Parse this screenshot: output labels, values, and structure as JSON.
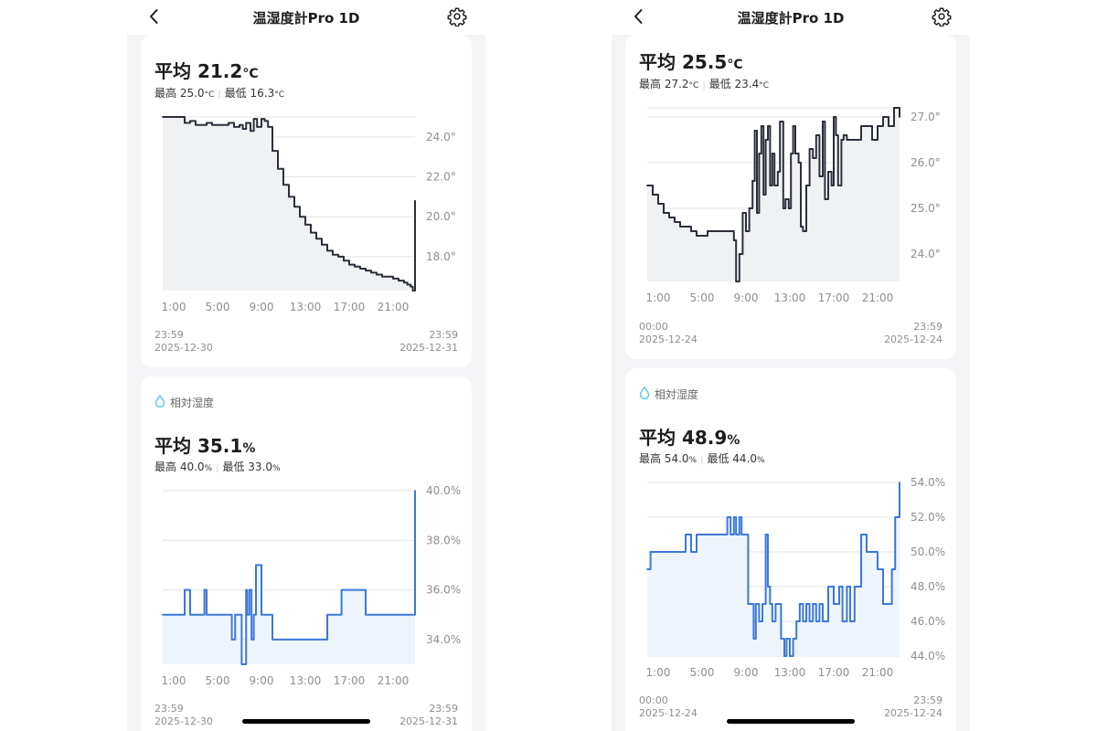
{
  "screens": [
    {
      "header": {
        "title": "温湿度計Pro 1D"
      },
      "temperature": {
        "avg_label": "平均 21.2",
        "avg_unit": "°C",
        "max_label": "最高 25.0",
        "max_unit": "°C",
        "min_label": "最低 16.3",
        "min_unit": "°C",
        "range_start_time": "23:59",
        "range_start_date": "2025-12-30",
        "range_end_time": "23:59",
        "range_end_date": "2025-12-31"
      },
      "humidity": {
        "label": "相対湿度",
        "avg_label": "平均 35.1",
        "avg_unit": "%",
        "max_label": "最高 40.0",
        "max_unit": "%",
        "min_label": "最低 33.0",
        "min_unit": "%",
        "range_start_time": "23:59",
        "range_start_date": "2025-12-30",
        "range_end_time": "23:59",
        "range_end_date": "2025-12-31"
      }
    },
    {
      "header": {
        "title": "温湿度計Pro 1D"
      },
      "temperature": {
        "avg_label": "平均 25.5",
        "avg_unit": "°C",
        "max_label": "最高 27.2",
        "max_unit": "°C",
        "min_label": "最低 23.4",
        "min_unit": "°C",
        "range_start_time": "00:00",
        "range_start_date": "2025-12-24",
        "range_end_time": "23:59",
        "range_end_date": "2025-12-24"
      },
      "humidity": {
        "label": "相対湿度",
        "avg_label": "平均 48.9",
        "avg_unit": "%",
        "max_label": "最高 54.0",
        "max_unit": "%",
        "min_label": "最低 44.0",
        "min_unit": "%",
        "range_start_time": "00:00",
        "range_start_date": "2025-12-24",
        "range_end_time": "23:59",
        "range_end_date": "2025-12-24"
      }
    }
  ],
  "colors": {
    "temperature_line": "#2b2f3a",
    "temperature_fill": "#eff1f2",
    "humidity_line": "#3b78d8",
    "humidity_fill": "#eef4fb",
    "gridline": "#e3e3e6",
    "tick_text": "#8e8e93",
    "drop_icon": "#5ac8fa"
  },
  "chart_data": [
    {
      "type": "line",
      "series": [
        {
          "x": [
            0,
            1,
            2,
            2.5,
            3,
            3.5,
            4,
            4.5,
            5,
            5.5,
            6,
            6.5,
            7,
            7.3,
            7.6,
            8,
            8.3,
            8.6,
            9,
            9.3,
            9.6,
            10,
            10.5,
            11,
            11.5,
            12,
            12.5,
            13,
            13.5,
            14,
            14.5,
            15,
            15.5,
            16,
            16.5,
            17,
            17.5,
            18,
            18.5,
            19,
            19.5,
            20,
            20.5,
            21,
            21.5,
            22,
            22.3,
            22.6,
            22.8,
            23
          ],
          "y": [
            25.0,
            25.0,
            24.7,
            24.8,
            24.6,
            24.6,
            24.7,
            24.6,
            24.6,
            24.6,
            24.7,
            24.5,
            24.6,
            24.4,
            24.7,
            24.3,
            24.9,
            24.5,
            24.9,
            24.8,
            24.5,
            23.3,
            22.4,
            21.6,
            21.0,
            20.5,
            20.0,
            19.6,
            19.2,
            18.9,
            18.6,
            18.3,
            18.1,
            18.0,
            17.8,
            17.6,
            17.5,
            17.4,
            17.3,
            17.2,
            17.1,
            17.0,
            17.0,
            16.9,
            16.8,
            16.7,
            16.6,
            16.5,
            16.3,
            20.8
          ]
        }
      ],
      "xticks": [
        "1:00",
        "5:00",
        "9:00",
        "13:00",
        "17:00",
        "21:00"
      ],
      "yticks": [
        "18.0°",
        "20.0°",
        "22.0°",
        "24.0°"
      ],
      "ylim": [
        16.3,
        25.0
      ]
    },
    {
      "type": "line",
      "series": [
        {
          "x": [
            0,
            0.5,
            1,
            1.5,
            2,
            2.5,
            3,
            3.5,
            3.8,
            4,
            4.5,
            5,
            5.5,
            6,
            6.3,
            6.6,
            7,
            7.2,
            7.6,
            7.7,
            7.9,
            8.1,
            8.3,
            8.5,
            9,
            9.5,
            10,
            10.5,
            11,
            11.5,
            12,
            12.5,
            13,
            13.5,
            14,
            15,
            16,
            16.3,
            16.5,
            17,
            17.5,
            18,
            18.5,
            19,
            19.5,
            20,
            20.5,
            21,
            21.5,
            22,
            22.5,
            23
          ],
          "y": [
            35.0,
            35.0,
            35.0,
            35.0,
            36.0,
            35.0,
            35.0,
            35.0,
            36.0,
            35.0,
            35.0,
            35.0,
            35.0,
            35.0,
            34.0,
            35.0,
            35.0,
            33.0,
            36.0,
            35.0,
            36.0,
            34.0,
            35.0,
            37.0,
            35.0,
            35.0,
            34.0,
            34.0,
            34.0,
            34.0,
            34.0,
            34.0,
            34.0,
            34.0,
            34.0,
            35.0,
            35.0,
            36.0,
            36.0,
            36.0,
            36.0,
            36.0,
            35.0,
            35.0,
            35.0,
            35.0,
            35.0,
            35.0,
            35.0,
            35.0,
            35.0,
            40.0
          ]
        }
      ],
      "xticks": [
        "1:00",
        "5:00",
        "9:00",
        "13:00",
        "17:00",
        "21:00"
      ],
      "yticks": [
        "34.0%",
        "36.0%",
        "38.0%",
        "40.0%"
      ],
      "ylim": [
        33.0,
        40.0
      ]
    },
    {
      "type": "line",
      "series": [
        {
          "x": [
            0,
            0.5,
            1,
            1.5,
            2,
            2.5,
            3,
            3.5,
            4,
            4.5,
            5,
            5.5,
            6,
            6.5,
            7,
            7.5,
            7.9,
            8.1,
            8.4,
            8.7,
            9,
            9.3,
            9.6,
            9.8,
            10,
            10.2,
            10.4,
            10.6,
            10.8,
            11,
            11.2,
            11.4,
            11.6,
            11.9,
            12.1,
            12.4,
            12.6,
            12.9,
            13.1,
            13.3,
            13.5,
            13.8,
            14,
            14.2,
            14.5,
            14.8,
            15.1,
            15.4,
            15.7,
            16,
            16.2,
            16.5,
            16.8,
            17,
            17.2,
            17.4,
            17.7,
            17.9,
            18.2,
            18.5,
            19,
            19.5,
            20,
            20.5,
            21,
            21.5,
            22,
            22.5,
            23
          ],
          "y": [
            25.5,
            25.3,
            25.1,
            24.9,
            24.8,
            24.7,
            24.6,
            24.6,
            24.5,
            24.4,
            24.4,
            24.5,
            24.5,
            24.5,
            24.5,
            24.5,
            24.3,
            23.4,
            24.0,
            24.9,
            24.5,
            25.0,
            25.6,
            26.7,
            24.9,
            26.2,
            26.8,
            25.3,
            26.5,
            26.8,
            25.5,
            26.2,
            25.5,
            25.8,
            26.9,
            25.0,
            25.2,
            25.0,
            26.2,
            26.8,
            26.2,
            26.0,
            24.6,
            24.5,
            25.5,
            26.3,
            26.1,
            26.6,
            25.7,
            26.9,
            25.2,
            25.8,
            25.5,
            27.0,
            26.6,
            25.5,
            26.5,
            26.6,
            26.5,
            26.5,
            26.5,
            26.8,
            26.8,
            26.5,
            26.8,
            27.0,
            26.8,
            27.2,
            27.0
          ]
        }
      ],
      "xticks": [
        "1:00",
        "5:00",
        "9:00",
        "13:00",
        "17:00",
        "21:00"
      ],
      "yticks": [
        "24.0°",
        "25.0°",
        "26.0°",
        "27.0°"
      ],
      "ylim": [
        23.4,
        27.2
      ]
    },
    {
      "type": "line",
      "series": [
        {
          "x": [
            0,
            0.3,
            0.8,
            1.3,
            2,
            2.5,
            3,
            3.5,
            4,
            4.5,
            5,
            5.5,
            6,
            6.5,
            7,
            7.3,
            7.6,
            7.9,
            8.1,
            8.4,
            8.6,
            8.9,
            9.2,
            9.4,
            9.7,
            9.9,
            10.2,
            10.5,
            10.8,
            11,
            11.2,
            11.4,
            11.7,
            11.9,
            12.2,
            12.5,
            12.7,
            13,
            13.3,
            13.6,
            13.9,
            14.2,
            14.5,
            14.8,
            15.1,
            15.4,
            15.7,
            16,
            16.5,
            17,
            17.5,
            17.8,
            18.2,
            18.5,
            18.9,
            19.5,
            20,
            20.5,
            21,
            21.5,
            21.8,
            22,
            22.3,
            22.6,
            23
          ],
          "y": [
            49.0,
            50.0,
            50.0,
            50.0,
            50.0,
            50.0,
            50.0,
            51.0,
            50.0,
            51.0,
            51.0,
            51.0,
            51.0,
            51.0,
            51.0,
            52.0,
            51.0,
            52.0,
            51.0,
            52.0,
            51.0,
            51.0,
            47.0,
            47.0,
            45.0,
            47.0,
            46.0,
            47.0,
            51.0,
            48.0,
            47.0,
            46.0,
            47.0,
            47.0,
            45.0,
            44.0,
            45.0,
            44.0,
            45.0,
            46.0,
            47.0,
            46.0,
            47.0,
            46.0,
            47.0,
            46.0,
            47.0,
            46.0,
            48.0,
            47.0,
            48.0,
            46.0,
            48.0,
            46.0,
            48.0,
            51.0,
            50.0,
            50.0,
            49.0,
            47.0,
            47.0,
            47.0,
            49.0,
            52.0,
            54.0
          ]
        }
      ],
      "xticks": [
        "1:00",
        "5:00",
        "9:00",
        "13:00",
        "17:00",
        "21:00"
      ],
      "yticks": [
        "44.0%",
        "46.0%",
        "48.0%",
        "50.0%",
        "52.0%",
        "54.0%"
      ],
      "ylim": [
        44.0,
        54.0
      ]
    }
  ]
}
